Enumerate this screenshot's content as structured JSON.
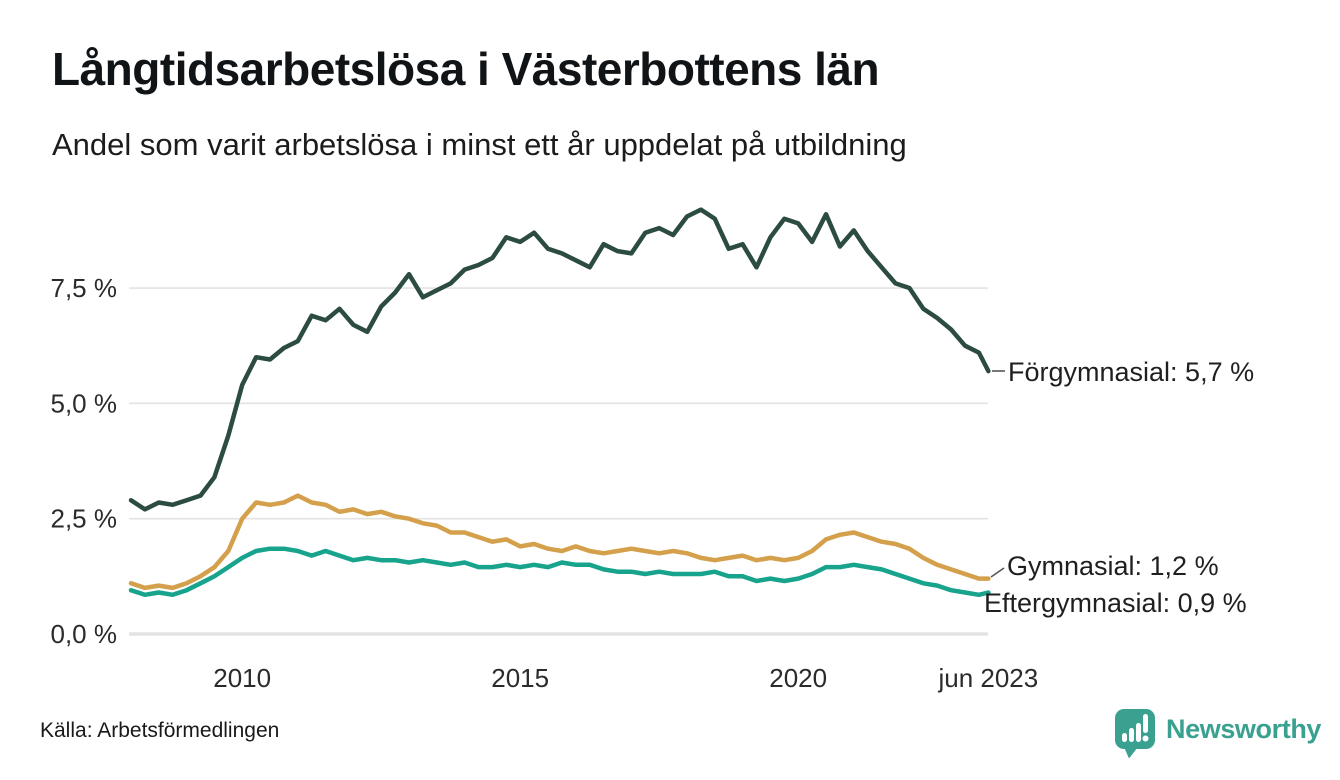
{
  "header": {
    "title": "Långtidsarbetslösa i Västerbottens län",
    "subtitle": "Andel som varit arbetslösa i minst ett år uppdelat på utbildning"
  },
  "footer": {
    "source": "Källa: Arbetsförmedlingen",
    "brand": "Newsworthy"
  },
  "colors": {
    "forgymnasial": "#2c4c41",
    "gymnasial": "#d4a04b",
    "eftergymnasial": "#17a38c",
    "brand_teal": "#3aa191",
    "grid": "#e3e3e3",
    "axis_text": "#2b2b2b",
    "label_text": "#1f1f1f"
  },
  "chart_data": {
    "type": "line",
    "title": "Långtidsarbetslösa i Västerbottens län",
    "subtitle": "Andel som varit arbetslösa i minst ett år uppdelat på utbildning",
    "xlabel": "",
    "ylabel": "",
    "ylim": [
      0,
      9.6
    ],
    "xlim": [
      2008.0,
      2023.42
    ],
    "grid": "horizontal",
    "legend_position": "end-of-line-labels",
    "y_ticks": [
      {
        "value": 0,
        "label": "0,0 %"
      },
      {
        "value": 2.5,
        "label": "2,5 %"
      },
      {
        "value": 5,
        "label": "5,0 %"
      },
      {
        "value": 7.5,
        "label": "7,5 %"
      }
    ],
    "x_ticks": [
      {
        "t": 2010,
        "label": "2010"
      },
      {
        "t": 2015,
        "label": "2015"
      },
      {
        "t": 2020,
        "label": "2020"
      },
      {
        "t": 2023.42,
        "label": "jun 2023"
      }
    ],
    "x": [
      2008.0,
      2008.25,
      2008.5,
      2008.75,
      2009.0,
      2009.25,
      2009.5,
      2009.75,
      2010.0,
      2010.25,
      2010.5,
      2010.75,
      2011.0,
      2011.25,
      2011.5,
      2011.75,
      2012.0,
      2012.25,
      2012.5,
      2012.75,
      2013.0,
      2013.25,
      2013.5,
      2013.75,
      2014.0,
      2014.25,
      2014.5,
      2014.75,
      2015.0,
      2015.25,
      2015.5,
      2015.75,
      2016.0,
      2016.25,
      2016.5,
      2016.75,
      2017.0,
      2017.25,
      2017.5,
      2017.75,
      2018.0,
      2018.25,
      2018.5,
      2018.75,
      2019.0,
      2019.25,
      2019.5,
      2019.75,
      2020.0,
      2020.25,
      2020.5,
      2020.75,
      2021.0,
      2021.25,
      2021.5,
      2021.75,
      2022.0,
      2022.25,
      2022.5,
      2022.75,
      2023.0,
      2023.25,
      2023.42
    ],
    "series": [
      {
        "name": "Förgymnasial",
        "end_label": "Förgymnasial: 5,7 %",
        "final_value": 5.7,
        "color_key": "forgymnasial",
        "values": [
          2.9,
          2.7,
          2.85,
          2.8,
          2.9,
          3.0,
          3.4,
          4.3,
          5.4,
          6.0,
          5.95,
          6.2,
          6.35,
          6.9,
          6.8,
          7.05,
          6.7,
          6.55,
          7.1,
          7.4,
          7.8,
          7.3,
          7.45,
          7.6,
          7.9,
          8.0,
          8.15,
          8.6,
          8.5,
          8.7,
          8.35,
          8.25,
          8.1,
          7.95,
          8.45,
          8.3,
          8.25,
          8.7,
          8.8,
          8.65,
          9.05,
          9.2,
          9.0,
          8.35,
          8.45,
          7.95,
          8.6,
          9.0,
          8.9,
          8.5,
          9.1,
          8.4,
          8.75,
          8.3,
          7.95,
          7.6,
          7.5,
          7.05,
          6.85,
          6.6,
          6.25,
          6.1,
          5.7
        ]
      },
      {
        "name": "Gymnasial",
        "end_label": "Gymnasial: 1,2 %",
        "final_value": 1.2,
        "color_key": "gymnasial",
        "values": [
          1.1,
          1.0,
          1.05,
          1.0,
          1.1,
          1.25,
          1.45,
          1.8,
          2.5,
          2.85,
          2.8,
          2.85,
          3.0,
          2.85,
          2.8,
          2.65,
          2.7,
          2.6,
          2.65,
          2.55,
          2.5,
          2.4,
          2.35,
          2.2,
          2.2,
          2.1,
          2.0,
          2.05,
          1.9,
          1.95,
          1.85,
          1.8,
          1.9,
          1.8,
          1.75,
          1.8,
          1.85,
          1.8,
          1.75,
          1.8,
          1.75,
          1.65,
          1.6,
          1.65,
          1.7,
          1.6,
          1.65,
          1.6,
          1.65,
          1.8,
          2.05,
          2.15,
          2.2,
          2.1,
          2.0,
          1.95,
          1.85,
          1.65,
          1.5,
          1.4,
          1.3,
          1.2,
          1.2
        ]
      },
      {
        "name": "Eftergymnasial",
        "end_label": "Eftergymnasial: 0,9 %",
        "final_value": 0.9,
        "color_key": "eftergymnasial",
        "values": [
          0.95,
          0.85,
          0.9,
          0.85,
          0.95,
          1.1,
          1.25,
          1.45,
          1.65,
          1.8,
          1.85,
          1.85,
          1.8,
          1.7,
          1.8,
          1.7,
          1.6,
          1.65,
          1.6,
          1.6,
          1.55,
          1.6,
          1.55,
          1.5,
          1.55,
          1.45,
          1.45,
          1.5,
          1.45,
          1.5,
          1.45,
          1.55,
          1.5,
          1.5,
          1.4,
          1.35,
          1.35,
          1.3,
          1.35,
          1.3,
          1.3,
          1.3,
          1.35,
          1.25,
          1.25,
          1.15,
          1.2,
          1.15,
          1.2,
          1.3,
          1.45,
          1.45,
          1.5,
          1.45,
          1.4,
          1.3,
          1.2,
          1.1,
          1.05,
          0.95,
          0.9,
          0.85,
          0.9
        ]
      }
    ]
  }
}
